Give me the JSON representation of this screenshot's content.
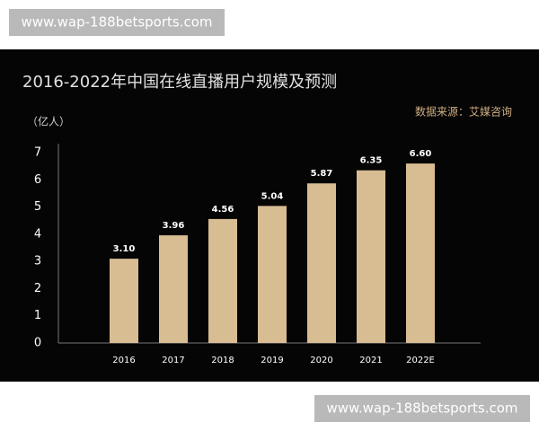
{
  "watermarks": [
    "www.wap-188betsports.com",
    "www.wap-188betsports.com"
  ],
  "chart_data": {
    "type": "bar",
    "title": "2016-2022年中国在线直播用户规模及预测",
    "source": "数据来源：艾媒咨询",
    "y_label": "（亿人）",
    "categories": [
      "2016",
      "2017",
      "2018",
      "2019",
      "2020",
      "2021",
      "2022E"
    ],
    "values": [
      3.1,
      3.96,
      4.56,
      5.04,
      5.87,
      6.35,
      6.6
    ],
    "value_labels": [
      "3.10",
      "3.96",
      "4.56",
      "5.04",
      "5.87",
      "6.35",
      "6.60"
    ],
    "color": "#d8bc92",
    "ylim": [
      0,
      7
    ],
    "yticks": [
      0,
      1,
      2,
      3,
      4,
      5,
      6,
      7
    ],
    "grid": false
  }
}
